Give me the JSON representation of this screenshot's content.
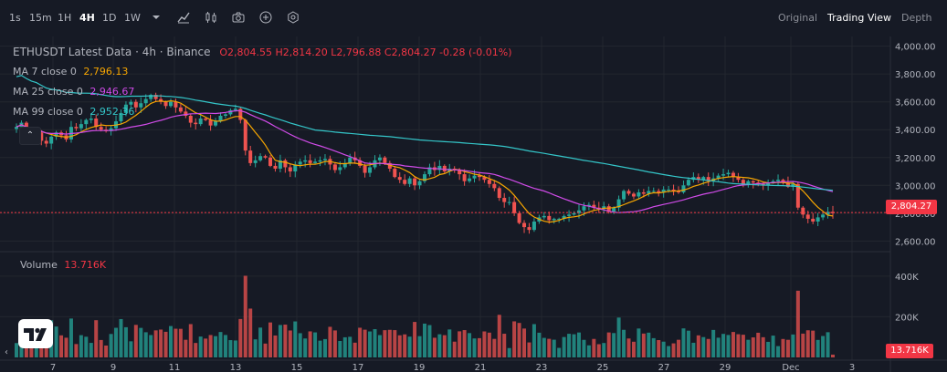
{
  "toolbar": {
    "timeframes": [
      "1s",
      "15m",
      "1H",
      "4H",
      "1D",
      "1W"
    ],
    "active_timeframe": "4H",
    "icons": [
      "chevron-down-icon",
      "line-chart-icon",
      "candle-style-icon",
      "camera-icon",
      "add-circle-icon",
      "settings-hex-icon"
    ],
    "views": [
      "Original",
      "Trading View",
      "Depth"
    ],
    "active_view": "Trading View"
  },
  "legend": {
    "title": "ETHUSDT Latest Data · 4h · Binance",
    "ohlc": {
      "o_label": "O",
      "o": "2,804.55",
      "h_label": "H",
      "h": "2,814.20",
      "l_label": "L",
      "l": "2,796.88",
      "c_label": "C",
      "c": "2,804.27",
      "change": "-0.28 (-0.01%)"
    },
    "ma7": {
      "label": "MA 7 close 0",
      "value": "2,796.13",
      "color": "#f7a600"
    },
    "ma25": {
      "label": "MA 25 close 0",
      "value": "2,946.67",
      "color": "#d04be8"
    },
    "ma99": {
      "label": "MA 99 close 0",
      "value": "2,952.36",
      "color": "#34c6c9"
    },
    "volume": {
      "label": "Volume",
      "value": "13.716K"
    }
  },
  "price_axis": {
    "ticks": [
      "4,000.00",
      "3,800.00",
      "3,600.00",
      "3,400.00",
      "3,200.00",
      "3,000.00",
      "2,800.00",
      "2,600.00"
    ],
    "current_price": "2,804.27"
  },
  "volume_axis": {
    "ticks": [
      "400K",
      "200K"
    ],
    "current_volume": "13.716K"
  },
  "time_axis": {
    "ticks": [
      "7",
      "9",
      "11",
      "13",
      "15",
      "17",
      "19",
      "21",
      "23",
      "25",
      "27",
      "29",
      "Dec",
      "3"
    ]
  },
  "colors": {
    "up": "#26a69a",
    "down": "#ef5350",
    "background": "#161a25",
    "grid": "#23272f",
    "price_line": "#f23645"
  },
  "chart_data": {
    "type": "candlestick",
    "symbol": "ETHUSDT",
    "interval": "4h",
    "ylim": [
      2550,
      4050
    ],
    "volume_ylim": [
      0,
      480000
    ],
    "candles_close": [
      3420,
      3450,
      3390,
      3370,
      3380,
      3320,
      3300,
      3350,
      3380,
      3360,
      3330,
      3420,
      3410,
      3440,
      3470,
      3480,
      3420,
      3400,
      3390,
      3410,
      3460,
      3520,
      3580,
      3600,
      3560,
      3590,
      3620,
      3650,
      3620,
      3600,
      3570,
      3600,
      3560,
      3530,
      3500,
      3450,
      3440,
      3480,
      3470,
      3430,
      3460,
      3500,
      3510,
      3540,
      3550,
      3470,
      3250,
      3160,
      3180,
      3210,
      3200,
      3140,
      3120,
      3180,
      3130,
      3100,
      3150,
      3170,
      3180,
      3160,
      3170,
      3180,
      3190,
      3150,
      3110,
      3130,
      3160,
      3200,
      3180,
      3140,
      3090,
      3130,
      3180,
      3200,
      3160,
      3120,
      3060,
      3040,
      3010,
      3050,
      3000,
      3030,
      3080,
      3130,
      3110,
      3140,
      3100,
      3120,
      3110,
      3080,
      3030,
      3050,
      3070,
      3060,
      3040,
      3010,
      2980,
      2910,
      2880,
      2880,
      2800,
      2730,
      2700,
      2680,
      2740,
      2770,
      2780,
      2750,
      2760,
      2760,
      2780,
      2790,
      2800,
      2820,
      2850,
      2860,
      2840,
      2830,
      2850,
      2810,
      2840,
      2900,
      2960,
      2940,
      2920,
      2950,
      2940,
      2960,
      2960,
      2950,
      2970,
      2970,
      2960,
      2950,
      3000,
      3040,
      3060,
      3040,
      3060,
      3030,
      3050,
      3070,
      3080,
      3090,
      3060,
      3040,
      3010,
      3030,
      3020,
      3010,
      3000,
      3020,
      3030,
      3040,
      3020,
      2990,
      3010,
      2840,
      2790,
      2760,
      2740,
      2770,
      2790,
      2810,
      2800
    ],
    "ma7_last": 2796.13,
    "ma25_last": 2946.67,
    "ma99_last": 2952.36,
    "last_close": 2804.27,
    "last_volume": 13716
  }
}
